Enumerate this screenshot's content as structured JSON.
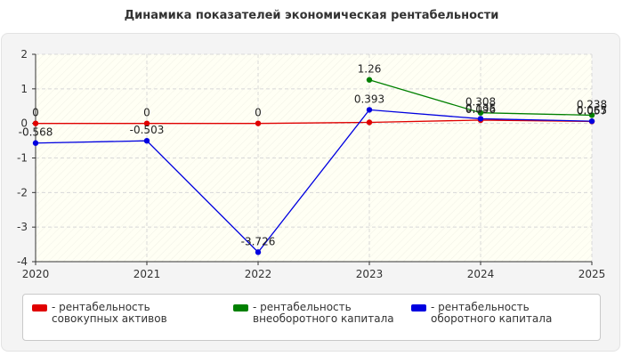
{
  "chart_data": {
    "type": "line",
    "title": "Динамика показателей экономическая рентабельности",
    "x": [
      "2020",
      "2021",
      "2022",
      "2023",
      "2024",
      "2025"
    ],
    "ylim": [
      -4,
      2
    ],
    "yticks": [
      "2",
      "1",
      "0",
      "-1",
      "-2",
      "-3",
      "-4"
    ],
    "grid": true,
    "legend_position": "bottom",
    "series": [
      {
        "name": "- рентабельность совокупных активов",
        "color": "#e00000",
        "values": [
          0,
          0,
          0,
          0.03,
          0.096,
          0.057
        ],
        "labels": [
          "0",
          "0",
          "0",
          "",
          "0.096",
          "0.057"
        ]
      },
      {
        "name": "- рентабельность внеоборотного капитала",
        "color": "#008000",
        "values": [
          null,
          null,
          null,
          1.26,
          0.308,
          0.238
        ],
        "labels": [
          "",
          "",
          "",
          "1.26",
          "0.308",
          "0.238"
        ]
      },
      {
        "name": "- рентабельность оборотного капитала",
        "color": "#0000e0",
        "values": [
          -0.568,
          -0.503,
          -3.726,
          0.393,
          0.135,
          0.065
        ],
        "labels": [
          "-0.568",
          "-0.503",
          "-3.726",
          "0.393",
          "0.135",
          "0.065"
        ]
      }
    ]
  }
}
